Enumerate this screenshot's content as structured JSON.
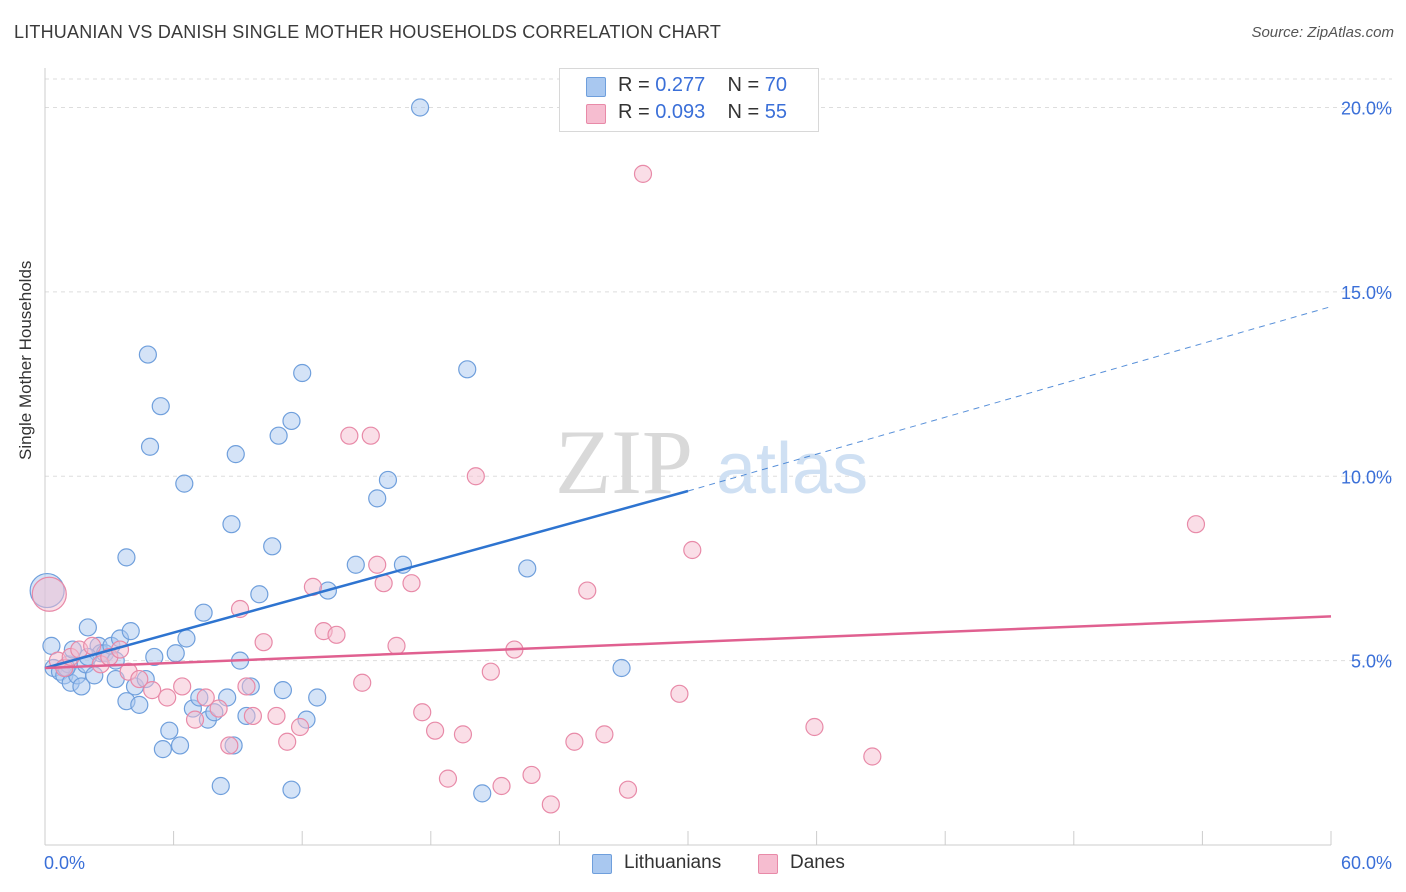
{
  "title": "LITHUANIAN VS DANISH SINGLE MOTHER HOUSEHOLDS CORRELATION CHART",
  "source": "Source: ZipAtlas.com",
  "watermark": {
    "zip": "ZIP",
    "atlas": "atlas"
  },
  "legend": {
    "rows": [
      {
        "r_label": "R = ",
        "r_value": "0.277",
        "n_label": "N = ",
        "n_value": "70"
      },
      {
        "r_label": "R = ",
        "r_value": "0.093",
        "n_label": "N = ",
        "n_value": "55"
      }
    ]
  },
  "bottom_legend": [
    "Lithuanians",
    "Danes"
  ],
  "colors": {
    "lith_fill": "#a9c8f0",
    "lith_stroke": "#6f9fdc",
    "lith_line": "#2e74d0",
    "dane_fill": "#f6bdd0",
    "dane_stroke": "#e88aa8",
    "dane_line": "#e06090",
    "tick_label": "#3a6fd8",
    "grid": "#dddddd"
  },
  "chart_data": {
    "type": "scatter",
    "xlabel": "",
    "ylabel": "Single Mother Households",
    "xlim": [
      0,
      60
    ],
    "ylim": [
      0,
      20.8
    ],
    "x_tick_labels": [
      "0.0%",
      "60.0%"
    ],
    "y_ticks": [
      5,
      10,
      15,
      20
    ],
    "y_tick_labels": [
      "5.0%",
      "10.0%",
      "15.0%",
      "20.0%"
    ],
    "grid": true,
    "series": [
      {
        "name": "Lithuanians",
        "points": [
          [
            0.1,
            6.9
          ],
          [
            0.3,
            5.4
          ],
          [
            0.4,
            4.8
          ],
          [
            0.7,
            4.7
          ],
          [
            0.9,
            4.6
          ],
          [
            1.1,
            4.9
          ],
          [
            1.2,
            4.4
          ],
          [
            1.3,
            5.3
          ],
          [
            1.5,
            4.6
          ],
          [
            1.7,
            4.3
          ],
          [
            1.9,
            4.9
          ],
          [
            2.0,
            5.9
          ],
          [
            2.3,
            4.6
          ],
          [
            2.5,
            5.4
          ],
          [
            2.6,
            5.2
          ],
          [
            2.8,
            5.2
          ],
          [
            3.1,
            5.4
          ],
          [
            3.3,
            4.5
          ],
          [
            3.5,
            5.6
          ],
          [
            3.8,
            3.9
          ],
          [
            4.0,
            5.8
          ],
          [
            4.2,
            4.3
          ],
          [
            4.4,
            3.8
          ],
          [
            4.7,
            4.5
          ],
          [
            5.1,
            5.1
          ],
          [
            5.5,
            2.6
          ],
          [
            5.8,
            3.1
          ],
          [
            6.1,
            5.2
          ],
          [
            6.3,
            2.7
          ],
          [
            6.6,
            5.6
          ],
          [
            6.9,
            3.7
          ],
          [
            7.2,
            4.0
          ],
          [
            7.4,
            6.3
          ],
          [
            7.6,
            3.4
          ],
          [
            7.9,
            3.6
          ],
          [
            8.2,
            1.6
          ],
          [
            8.5,
            4.0
          ],
          [
            8.8,
            2.7
          ],
          [
            9.1,
            5.0
          ],
          [
            9.4,
            3.5
          ],
          [
            9.6,
            4.3
          ],
          [
            10.0,
            6.8
          ],
          [
            10.6,
            8.1
          ],
          [
            11.1,
            4.2
          ],
          [
            11.5,
            11.5
          ],
          [
            12.2,
            3.4
          ],
          [
            12.7,
            4.0
          ],
          [
            14.5,
            7.6
          ],
          [
            15.5,
            9.4
          ],
          [
            16.0,
            9.9
          ],
          [
            16.7,
            7.6
          ],
          [
            20.4,
            1.4
          ],
          [
            22.5,
            7.5
          ],
          [
            26.9,
            4.8
          ],
          [
            3.8,
            7.8
          ],
          [
            4.8,
            13.3
          ],
          [
            4.9,
            10.8
          ],
          [
            5.4,
            11.9
          ],
          [
            6.5,
            9.8
          ],
          [
            8.7,
            8.7
          ],
          [
            8.9,
            10.6
          ],
          [
            10.9,
            11.1
          ],
          [
            12.0,
            12.8
          ],
          [
            11.5,
            1.5
          ],
          [
            19.7,
            12.9
          ],
          [
            17.5,
            20.0
          ],
          [
            13.2,
            6.9
          ],
          [
            3.3,
            5.0
          ],
          [
            1.0,
            4.8
          ],
          [
            2.0,
            5.1
          ]
        ],
        "trend_solid": [
          [
            0,
            4.8
          ],
          [
            30,
            9.6
          ]
        ],
        "trend_dashed": [
          [
            30,
            9.6
          ],
          [
            60,
            14.6
          ]
        ]
      },
      {
        "name": "Danes",
        "points": [
          [
            0.2,
            6.8
          ],
          [
            0.6,
            5.0
          ],
          [
            0.9,
            4.8
          ],
          [
            1.2,
            5.1
          ],
          [
            1.6,
            5.3
          ],
          [
            2.2,
            5.4
          ],
          [
            2.6,
            4.9
          ],
          [
            3.0,
            5.1
          ],
          [
            3.5,
            5.3
          ],
          [
            3.9,
            4.7
          ],
          [
            4.4,
            4.5
          ],
          [
            5.0,
            4.2
          ],
          [
            5.7,
            4.0
          ],
          [
            6.4,
            4.3
          ],
          [
            7.0,
            3.4
          ],
          [
            7.5,
            4.0
          ],
          [
            8.1,
            3.7
          ],
          [
            8.6,
            2.7
          ],
          [
            9.1,
            6.4
          ],
          [
            9.4,
            4.3
          ],
          [
            9.7,
            3.5
          ],
          [
            10.2,
            5.5
          ],
          [
            10.8,
            3.5
          ],
          [
            11.3,
            2.8
          ],
          [
            11.9,
            3.2
          ],
          [
            12.5,
            7.0
          ],
          [
            13.0,
            5.8
          ],
          [
            13.6,
            5.7
          ],
          [
            14.2,
            11.1
          ],
          [
            14.8,
            4.4
          ],
          [
            15.2,
            11.1
          ],
          [
            15.5,
            7.6
          ],
          [
            15.8,
            7.1
          ],
          [
            16.4,
            5.4
          ],
          [
            17.1,
            7.1
          ],
          [
            17.6,
            3.6
          ],
          [
            18.2,
            3.1
          ],
          [
            18.8,
            1.8
          ],
          [
            19.5,
            3.0
          ],
          [
            20.1,
            10.0
          ],
          [
            20.8,
            4.7
          ],
          [
            21.3,
            1.6
          ],
          [
            21.9,
            5.3
          ],
          [
            22.7,
            1.9
          ],
          [
            23.6,
            1.1
          ],
          [
            24.7,
            2.8
          ],
          [
            25.3,
            6.9
          ],
          [
            26.1,
            3.0
          ],
          [
            27.2,
            1.5
          ],
          [
            27.9,
            18.2
          ],
          [
            29.6,
            4.1
          ],
          [
            30.2,
            8.0
          ],
          [
            35.9,
            3.2
          ],
          [
            38.6,
            2.4
          ],
          [
            53.7,
            8.7
          ]
        ],
        "trend_solid": [
          [
            0,
            4.8
          ],
          [
            60,
            6.2
          ]
        ]
      }
    ]
  }
}
